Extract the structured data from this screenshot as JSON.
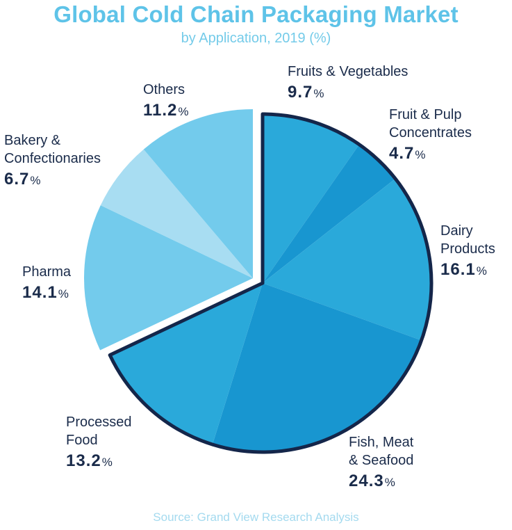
{
  "title": "Global Cold Chain Packaging Market",
  "subtitle": "by Application, 2019 (%)",
  "source": "Source: Grand View Research Analysis",
  "percent_sign": "%",
  "chart_data": {
    "type": "pie",
    "title": "Global Cold Chain Packaging Market",
    "subtitle": "by Application, 2019 (%)",
    "unit": "%",
    "slices": [
      {
        "label": "Fruits & Vegetables",
        "value": 9.7,
        "value_text": "9.7",
        "color": "#2aa9da",
        "group": "primary"
      },
      {
        "label": "Fruit & Pulp Concentrates",
        "value": 4.7,
        "value_text": "4.7",
        "color": "#1896d0",
        "group": "primary"
      },
      {
        "label": "Dairy Products",
        "value": 16.1,
        "value_text": "16.1",
        "color": "#2aa9da",
        "group": "primary"
      },
      {
        "label": "Fish, Meat & Seafood",
        "value": 24.3,
        "value_text": "24.3",
        "color": "#1896d0",
        "group": "primary"
      },
      {
        "label": "Processed Food",
        "value": 13.2,
        "value_text": "13.2",
        "color": "#2aa9da",
        "group": "primary"
      },
      {
        "label": "Pharma",
        "value": 14.1,
        "value_text": "14.1",
        "color": "#73cbec",
        "group": "secondary"
      },
      {
        "label": "Bakery & Confectionaries",
        "value": 6.7,
        "value_text": "6.7",
        "color": "#a8ddf2",
        "group": "secondary"
      },
      {
        "label": "Others",
        "value": 11.2,
        "value_text": "11.2",
        "color": "#73cbec",
        "group": "secondary"
      }
    ]
  },
  "labels": {
    "fruits_veg": {
      "name": "Fruits & Vegetables",
      "value": "9.7"
    },
    "fruit_pulp": {
      "name": "Fruit & Pulp\nConcentrates",
      "value": "4.7"
    },
    "dairy": {
      "name": "Dairy\nProducts",
      "value": "16.1"
    },
    "fish": {
      "name": "Fish, Meat\n& Seafood",
      "value": "24.3"
    },
    "processed": {
      "name": "Processed\nFood",
      "value": "13.2"
    },
    "pharma": {
      "name": "Pharma",
      "value": "14.1"
    },
    "bakery": {
      "name": "Bakery &\nConfectionaries",
      "value": "6.7"
    },
    "others": {
      "name": "Others",
      "value": "11.2"
    }
  }
}
